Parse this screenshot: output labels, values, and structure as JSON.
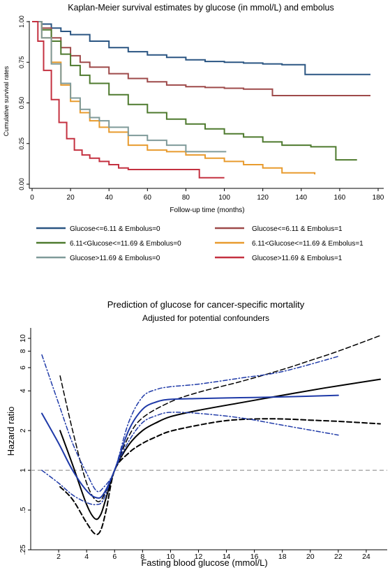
{
  "chart_data": [
    {
      "type": "line",
      "step": true,
      "title": "Kaplan-Meier survival estimates by glucose (in mmol/L) and embolus",
      "xlabel": "Follow-up time (months)",
      "ylabel": "Cumulative survival rates",
      "xlim": [
        0,
        180
      ],
      "ylim": [
        0,
        1
      ],
      "xticks": [
        0,
        20,
        40,
        60,
        80,
        100,
        120,
        140,
        160,
        180
      ],
      "xtick_labels": [
        "0",
        "20",
        "40",
        "60",
        "80",
        "100",
        "120",
        "140",
        "160",
        "180"
      ],
      "yticks": [
        0,
        0.25,
        0.5,
        0.75,
        1.0
      ],
      "ytick_labels": [
        "0.00",
        "0.25",
        "0.50",
        "0.75",
        "1.00"
      ],
      "legend_position": "bottom",
      "series": [
        {
          "name": "Glucose<=6.11 & Embolus=0",
          "color": "#2a5582",
          "x": [
            0,
            5,
            10,
            15,
            20,
            30,
            40,
            50,
            60,
            70,
            80,
            90,
            100,
            110,
            120,
            130,
            142,
            142.01,
            176
          ],
          "y": [
            1.0,
            0.985,
            0.96,
            0.94,
            0.92,
            0.88,
            0.84,
            0.815,
            0.795,
            0.78,
            0.765,
            0.755,
            0.75,
            0.745,
            0.74,
            0.735,
            0.73,
            0.675,
            0.675
          ]
        },
        {
          "name": "Glucose<=6.11 & Embolus=1",
          "color": "#9e4a4a",
          "x": [
            0,
            5,
            10,
            15,
            20,
            25,
            30,
            40,
            50,
            60,
            70,
            80,
            90,
            100,
            110,
            120,
            125,
            125.01,
            176
          ],
          "y": [
            1.0,
            0.96,
            0.9,
            0.84,
            0.79,
            0.75,
            0.72,
            0.68,
            0.65,
            0.63,
            0.61,
            0.6,
            0.595,
            0.59,
            0.585,
            0.585,
            0.585,
            0.545,
            0.545
          ]
        },
        {
          "name": "6.11<Glucose<=11.69 & Embolus=0",
          "color": "#4e7a2e",
          "x": [
            0,
            5,
            10,
            15,
            20,
            25,
            30,
            40,
            50,
            60,
            70,
            80,
            90,
            100,
            110,
            120,
            130,
            145,
            158,
            158.01,
            169
          ],
          "y": [
            1.0,
            0.95,
            0.88,
            0.8,
            0.73,
            0.67,
            0.62,
            0.55,
            0.49,
            0.44,
            0.4,
            0.37,
            0.34,
            0.31,
            0.29,
            0.26,
            0.24,
            0.23,
            0.23,
            0.15,
            0.15
          ]
        },
        {
          "name": "6.11<Glucose<=11.69 & Embolus=1",
          "color": "#e89b2e",
          "x": [
            0,
            5,
            10,
            15,
            20,
            25,
            30,
            35,
            40,
            50,
            60,
            70,
            80,
            90,
            100,
            110,
            120,
            130,
            147
          ],
          "y": [
            1.0,
            0.9,
            0.75,
            0.61,
            0.51,
            0.44,
            0.39,
            0.35,
            0.32,
            0.24,
            0.21,
            0.2,
            0.18,
            0.16,
            0.14,
            0.12,
            0.1,
            0.07,
            0.06
          ]
        },
        {
          "name": "Glucose>11.69 & Embolus=0",
          "color": "#7f9a99",
          "x": [
            0,
            5,
            10,
            15,
            20,
            25,
            30,
            35,
            40,
            50,
            60,
            70,
            80,
            101
          ],
          "y": [
            1.0,
            0.9,
            0.74,
            0.62,
            0.53,
            0.46,
            0.41,
            0.39,
            0.35,
            0.3,
            0.27,
            0.24,
            0.2,
            0.2
          ]
        },
        {
          "name": "Glucose>11.69 & Embolus=1",
          "color": "#c43140",
          "x": [
            0,
            3,
            6,
            10,
            14,
            18,
            22,
            26,
            30,
            35,
            40,
            45,
            50,
            60,
            70,
            85,
            87,
            100
          ],
          "y": [
            1.0,
            0.88,
            0.7,
            0.52,
            0.38,
            0.28,
            0.21,
            0.18,
            0.16,
            0.14,
            0.12,
            0.1,
            0.09,
            0.09,
            0.09,
            0.09,
            0.04,
            0.04
          ]
        }
      ]
    },
    {
      "type": "line",
      "title": "Prediction of glucose for cancer-specific mortality",
      "subtitle": "Adjusted for potential confounders",
      "xlabel": "Fasting blood glucose (mmol/L)",
      "ylabel": "Hazard ratio",
      "y_scale": "log",
      "xlim": [
        0,
        25.5
      ],
      "ylim": [
        0.25,
        12
      ],
      "reference_line": {
        "y": 1,
        "style": "dashed",
        "color": "#9a9a9a"
      },
      "xticks": [
        2,
        4,
        6,
        8,
        10,
        12,
        14,
        16,
        18,
        20,
        22,
        24
      ],
      "xtick_labels": [
        "2",
        "4",
        "6",
        "8",
        "10",
        "12",
        "14",
        "16",
        "18",
        "20",
        "22",
        "24"
      ],
      "yticks": [
        0.25,
        0.5,
        1,
        2,
        4,
        6,
        8,
        10
      ],
      "ytick_labels": [
        ".25",
        ".5",
        "1",
        "2",
        "4",
        "6",
        "8",
        "10"
      ],
      "series": [
        {
          "color": "#000000",
          "style": "solid",
          "width": 2,
          "x": [
            2.1,
            3,
            4,
            4.6,
            5.0,
            5.4,
            6.0,
            7,
            8,
            9,
            10,
            12,
            15,
            18,
            21,
            25
          ],
          "y": [
            2.0,
            1.1,
            0.55,
            0.43,
            0.46,
            0.62,
            1.0,
            1.55,
            2.0,
            2.3,
            2.55,
            2.85,
            3.25,
            3.7,
            4.2,
            4.9
          ]
        },
        {
          "color": "#000000",
          "style": "dashed",
          "width": 2,
          "x": [
            2.1,
            3,
            4,
            4.6,
            5.0,
            5.4,
            6.0,
            7,
            8,
            9,
            10,
            12,
            14,
            16,
            18,
            20,
            22,
            25
          ],
          "y": [
            0.75,
            0.6,
            0.4,
            0.33,
            0.35,
            0.5,
            1.0,
            1.35,
            1.6,
            1.8,
            1.98,
            2.2,
            2.38,
            2.45,
            2.45,
            2.4,
            2.35,
            2.25
          ]
        },
        {
          "color": "#000000",
          "style": "dashed",
          "width": 1.5,
          "x": [
            2.1,
            3,
            4,
            4.8,
            5.4,
            6.0,
            7,
            8,
            10,
            12,
            15,
            18,
            20,
            22,
            25
          ],
          "y": [
            5.2,
            2.0,
            0.8,
            0.58,
            0.7,
            1.0,
            1.8,
            2.5,
            3.3,
            3.9,
            4.7,
            5.8,
            6.8,
            8.0,
            10.5
          ]
        },
        {
          "color": "#1f3aa8",
          "style": "solid",
          "width": 2,
          "x": [
            0.8,
            2,
            3,
            4,
            4.7,
            5.2,
            6.0,
            7,
            8,
            9,
            10,
            12,
            15,
            18,
            22
          ],
          "y": [
            2.7,
            1.6,
            1.0,
            0.7,
            0.62,
            0.66,
            1.0,
            2.0,
            2.9,
            3.3,
            3.45,
            3.5,
            3.55,
            3.6,
            3.7
          ]
        },
        {
          "color": "#1f3aa8",
          "style": "dashdot",
          "width": 1.5,
          "x": [
            0.8,
            2,
            3,
            4,
            4.7,
            5.2,
            6.0,
            7,
            8,
            9,
            10,
            12,
            15,
            18,
            22
          ],
          "y": [
            7.5,
            3.2,
            1.6,
            0.95,
            0.7,
            0.74,
            1.0,
            2.3,
            3.6,
            4.1,
            4.3,
            4.5,
            5.0,
            5.6,
            7.3
          ]
        },
        {
          "color": "#1f3aa8",
          "style": "dashdot",
          "width": 1.5,
          "x": [
            0.8,
            2,
            3,
            4,
            4.7,
            5.2,
            6.0,
            7,
            8,
            9,
            10,
            12,
            15,
            18,
            22
          ],
          "y": [
            1.0,
            0.8,
            0.65,
            0.57,
            0.55,
            0.6,
            1.0,
            1.65,
            2.3,
            2.6,
            2.75,
            2.7,
            2.5,
            2.2,
            1.85
          ]
        }
      ]
    }
  ]
}
